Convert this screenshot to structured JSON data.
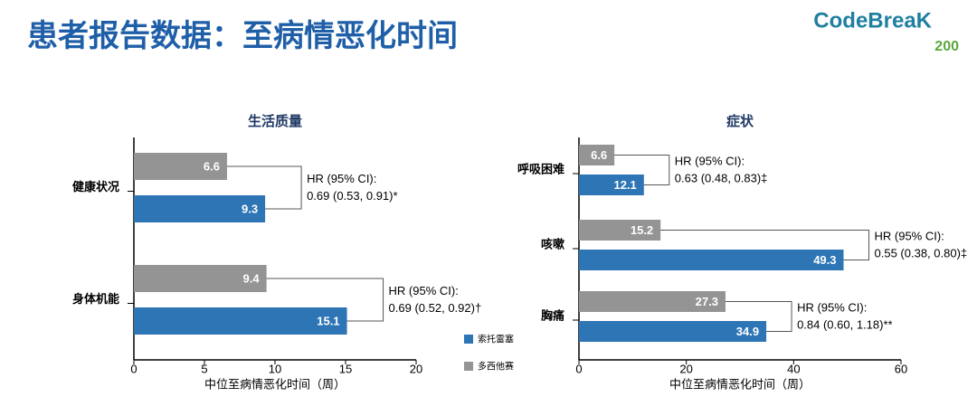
{
  "slide_title": "患者报告数据：至病情恶化时间",
  "logo": {
    "name": "CodeBreaK",
    "number": "200"
  },
  "chart_data": [
    {
      "type": "bar",
      "orientation": "horizontal",
      "title": "生活质量",
      "categories": [
        "健康状况",
        "身体机能"
      ],
      "series": [
        {
          "name": "多西他赛",
          "color": "#949494",
          "values": [
            6.6,
            9.4
          ]
        },
        {
          "name": "索托雷塞",
          "color": "#2e75b6",
          "values": [
            9.3,
            15.1
          ]
        }
      ],
      "xlim": [
        0,
        20
      ],
      "xticks": [
        0,
        5,
        10,
        15,
        20
      ],
      "xlabel": "中位至病情恶化时间（周）",
      "annotations": [
        [
          "HR (95% CI):",
          "0.69 (0.53, 0.91)*"
        ],
        [
          "HR (95% CI):",
          "0.69 (0.52, 0.92)†"
        ]
      ]
    },
    {
      "type": "bar",
      "orientation": "horizontal",
      "title": "症状",
      "categories": [
        "呼吸困难",
        "咳嗽",
        "胸痛"
      ],
      "series": [
        {
          "name": "多西他赛",
          "color": "#949494",
          "values": [
            6.6,
            15.2,
            27.3
          ]
        },
        {
          "name": "索托雷塞",
          "color": "#2e75b6",
          "values": [
            12.1,
            49.3,
            34.9
          ]
        }
      ],
      "xlim": [
        0,
        60
      ],
      "xticks": [
        0,
        20,
        40,
        60
      ],
      "xlabel": "中位至病情恶化时间（周）",
      "annotations": [
        [
          "HR (95% CI):",
          "0.63 (0.48, 0.83)‡"
        ],
        [
          "HR (95% CI):",
          "0.55 (0.38, 0.80)‡"
        ],
        [
          "HR (95% CI):",
          "0.84 (0.60, 1.18)**"
        ]
      ]
    }
  ]
}
